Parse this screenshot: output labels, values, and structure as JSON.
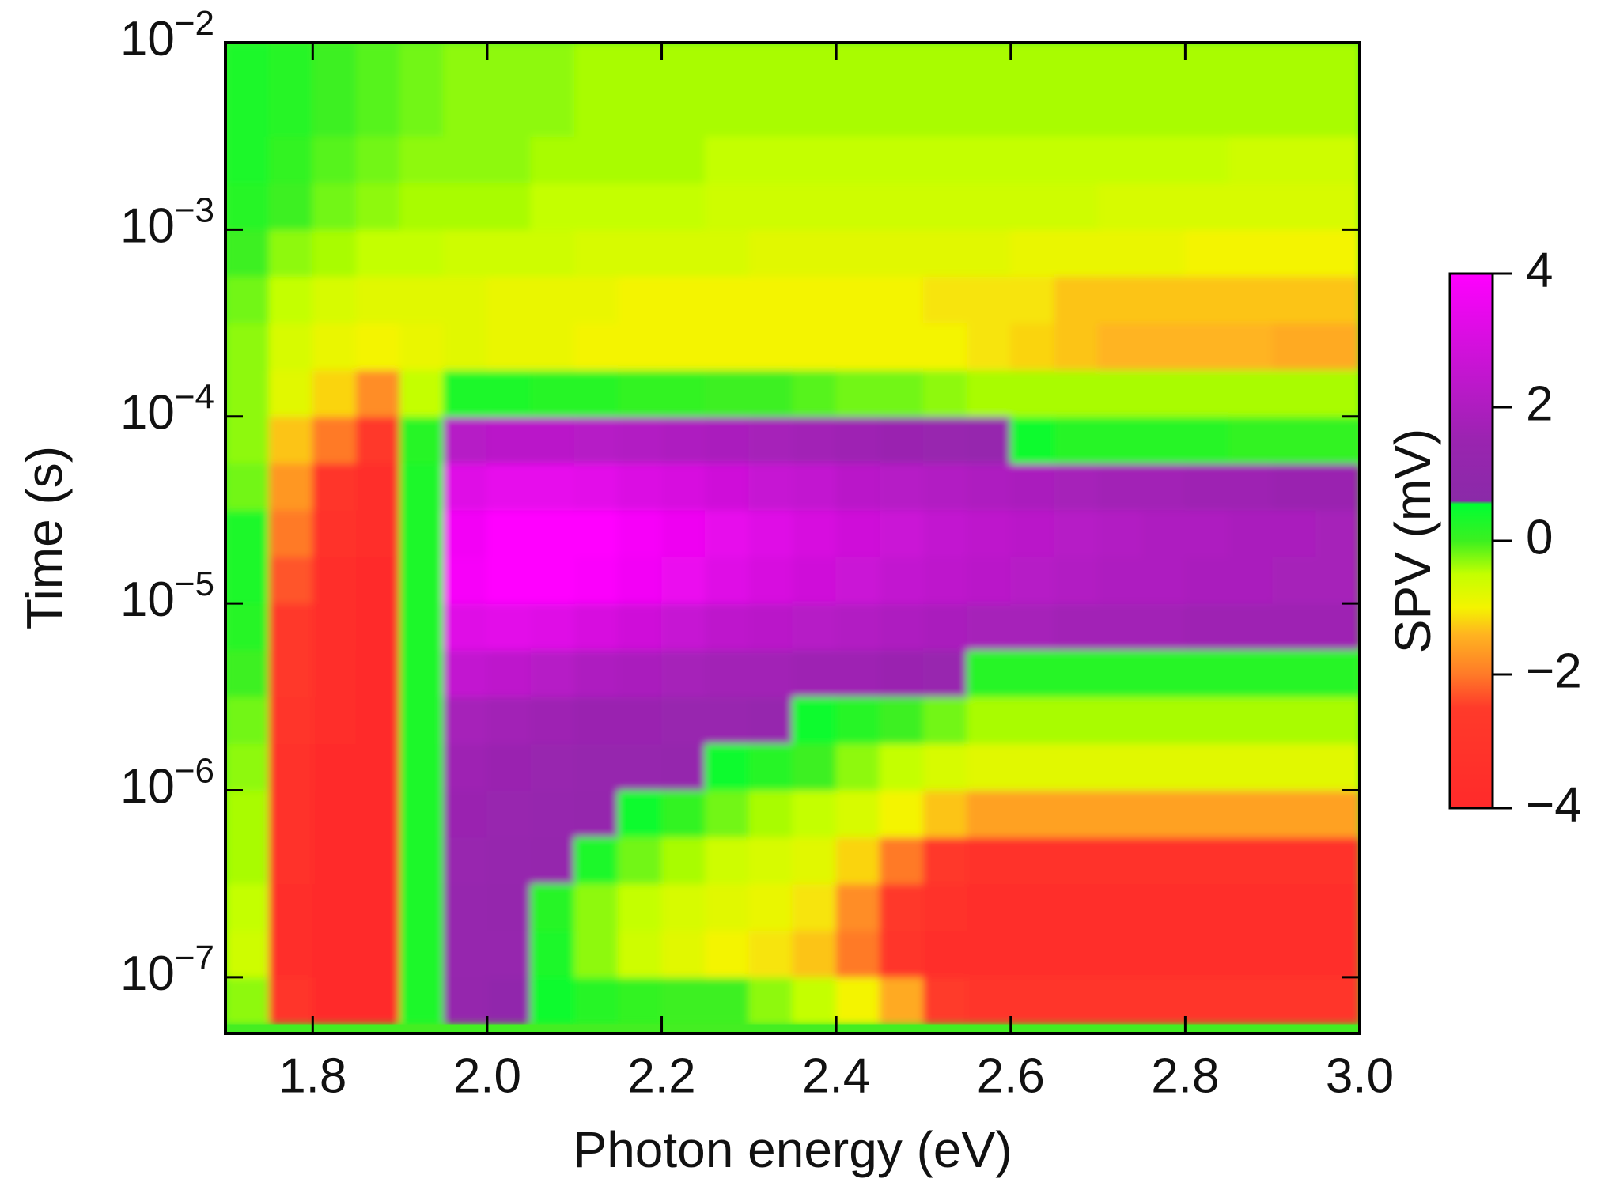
{
  "chart_data": {
    "type": "heatmap",
    "xlabel": "Photon energy (eV)",
    "ylabel": "Time (s)",
    "colorbar_label": "SPV (mV)",
    "x": [
      1.725,
      1.775,
      1.825,
      1.875,
      1.925,
      1.975,
      2.025,
      2.075,
      2.125,
      2.175,
      2.225,
      2.275,
      2.325,
      2.375,
      2.425,
      2.475,
      2.525,
      2.575,
      2.625,
      2.675,
      2.725,
      2.775,
      2.825,
      2.875,
      2.925,
      2.975
    ],
    "y": [
      7.5e-08,
      1.33e-07,
      2.37e-07,
      4.22e-07,
      7.5e-07,
      1.33e-06,
      2.37e-06,
      4.22e-06,
      7.5e-06,
      1.33e-05,
      2.37e-05,
      4.22e-05,
      7.5e-05,
      0.000133,
      0.000237,
      0.000422,
      0.00075,
      0.00133,
      0.00237,
      0.00422,
      0.0075
    ],
    "z": [
      [
        -0.3,
        -3,
        -3.8,
        -4,
        0.3,
        1.2,
        1,
        0.4,
        0.2,
        0.1,
        0,
        0,
        -0.3,
        -0.5,
        -1,
        -1.5,
        -2.5,
        -3,
        -3,
        -3,
        -3,
        -3,
        -3,
        -3,
        -3,
        -3
      ],
      [
        -0.6,
        -3.5,
        -3.9,
        -4,
        0.3,
        1.3,
        1.3,
        0.3,
        -0.3,
        -0.6,
        -0.8,
        -1,
        -1.1,
        -1.3,
        -2,
        -3,
        -3.5,
        -3.6,
        -3.6,
        -3.6,
        -3.6,
        -3.6,
        -3.6,
        -3.6,
        -3.6,
        -3.6
      ],
      [
        -0.5,
        -3.5,
        -3.9,
        -4,
        0.3,
        1.3,
        1.2,
        0.2,
        -0.3,
        -0.5,
        -0.7,
        -0.8,
        -0.9,
        -1.1,
        -1.8,
        -2.8,
        -3.4,
        -3.6,
        -3.6,
        -3.6,
        -3.6,
        -3.6,
        -3.6,
        -3.6,
        -3.6,
        -3.6
      ],
      [
        -0.4,
        -3.4,
        -3.9,
        -4,
        0.3,
        1.4,
        1.3,
        1.2,
        0.3,
        -0.2,
        -0.4,
        -0.6,
        -0.7,
        -0.8,
        -1.2,
        -2,
        -2.6,
        -3.2,
        -3.2,
        -3.2,
        -3.2,
        -3.2,
        -3.2,
        -3.2,
        -3.2,
        -3.2
      ],
      [
        -0.4,
        -3.3,
        -3.8,
        -4,
        0.3,
        1.5,
        1.4,
        1.3,
        1.2,
        0.4,
        0.1,
        -0.2,
        -0.4,
        -0.5,
        -0.7,
        -1,
        -1.3,
        -1.6,
        -1.6,
        -1.6,
        -1.6,
        -1.6,
        -1.6,
        -1.6,
        -1.6,
        -1.6
      ],
      [
        -0.3,
        -3.2,
        -3.8,
        -4,
        0.3,
        1.6,
        1.5,
        1.4,
        1.3,
        1.3,
        1.2,
        0.4,
        0.2,
        0,
        -0.3,
        -0.5,
        -0.7,
        -0.8,
        -0.8,
        -0.8,
        -0.8,
        -0.8,
        -0.8,
        -0.8,
        -0.8,
        -0.8
      ],
      [
        -0.2,
        -3,
        -3.7,
        -3.9,
        0.3,
        1.8,
        1.7,
        1.6,
        1.5,
        1.5,
        1.4,
        1.4,
        1.3,
        0.4,
        0.2,
        0,
        -0.2,
        -0.4,
        -0.4,
        -0.4,
        -0.4,
        -0.4,
        -0.4,
        -0.4,
        -0.4,
        -0.4
      ],
      [
        0,
        -2.8,
        -3.7,
        -3.9,
        0.3,
        2.5,
        2.4,
        2.2,
        2,
        1.9,
        1.8,
        1.7,
        1.7,
        1.6,
        1.6,
        1.5,
        1.4,
        0.2,
        0.2,
        0.2,
        0.2,
        0.2,
        0.2,
        0.2,
        0.2,
        0.2
      ],
      [
        0.2,
        -2.6,
        -3.6,
        -3.9,
        0.3,
        3.2,
        3.3,
        3.2,
        3,
        2.8,
        2.6,
        2.4,
        2.3,
        2.2,
        2.1,
        2,
        1.9,
        1.8,
        1.8,
        1.7,
        1.7,
        1.7,
        1.6,
        1.6,
        1.6,
        1.6
      ],
      [
        0.3,
        -2.3,
        -3.5,
        -3.8,
        0.3,
        3.8,
        4,
        4,
        3.9,
        3.7,
        3.5,
        3.2,
        3,
        2.8,
        2.7,
        2.5,
        2.4,
        2.3,
        2.2,
        2.1,
        2,
        2,
        1.9,
        1.9,
        1.8,
        1.8
      ],
      [
        0.3,
        -2,
        -3.3,
        -3.7,
        0.3,
        3.7,
        4,
        4,
        4,
        3.8,
        3.6,
        3.4,
        3.2,
        3,
        2.8,
        2.7,
        2.5,
        2.4,
        2.3,
        2.2,
        2.1,
        2,
        2,
        1.9,
        1.9,
        1.8
      ],
      [
        -0.2,
        -1.7,
        -3,
        -3.6,
        0.3,
        3.2,
        3.4,
        3.4,
        3.3,
        3.1,
        3,
        2.8,
        2.6,
        2.5,
        2.3,
        2.2,
        2.1,
        2,
        1.9,
        1.8,
        1.7,
        1.7,
        1.6,
        1.6,
        1.5,
        1.5
      ],
      [
        -0.3,
        -1.3,
        -2,
        -2.6,
        0.2,
        2.2,
        2.3,
        2.3,
        2.2,
        2.1,
        2,
        1.9,
        1.8,
        1.7,
        1.6,
        1.5,
        1.4,
        1.3,
        0.4,
        0.2,
        0.2,
        0.2,
        0.2,
        0.1,
        0.1,
        0.1
      ],
      [
        -0.3,
        -0.8,
        -1.2,
        -1.8,
        -0.5,
        0.3,
        0.3,
        0.2,
        0.2,
        0.1,
        0.1,
        0,
        0,
        -0.1,
        -0.2,
        -0.2,
        -0.3,
        -0.4,
        -0.4,
        -0.4,
        -0.4,
        -0.4,
        -0.4,
        -0.4,
        -0.4,
        -0.4
      ],
      [
        -0.3,
        -0.7,
        -0.9,
        -1,
        -0.9,
        -0.8,
        -0.9,
        -0.9,
        -1,
        -1,
        -1,
        -1,
        -1,
        -1,
        -1,
        -1,
        -1,
        -1.1,
        -1.2,
        -1.3,
        -1.4,
        -1.4,
        -1.4,
        -1.4,
        -1.5,
        -1.5
      ],
      [
        -0.2,
        -0.5,
        -0.7,
        -0.8,
        -0.8,
        -0.8,
        -0.9,
        -0.9,
        -0.9,
        -1,
        -1,
        -1,
        -1,
        -1,
        -1,
        -1,
        -1.1,
        -1.1,
        -1.1,
        -1.3,
        -1.3,
        -1.3,
        -1.3,
        -1.3,
        -1.3,
        -1.3
      ],
      [
        0,
        -0.3,
        -0.4,
        -0.5,
        -0.5,
        -0.6,
        -0.6,
        -0.6,
        -0.7,
        -0.7,
        -0.7,
        -0.7,
        -0.8,
        -0.8,
        -0.8,
        -0.8,
        -0.8,
        -0.8,
        -0.9,
        -0.9,
        -0.9,
        -0.9,
        -1,
        -1,
        -1,
        -1
      ],
      [
        0.2,
        0,
        -0.2,
        -0.3,
        -0.4,
        -0.4,
        -0.4,
        -0.5,
        -0.5,
        -0.5,
        -0.5,
        -0.6,
        -0.6,
        -0.6,
        -0.6,
        -0.6,
        -0.6,
        -0.6,
        -0.6,
        -0.6,
        -0.7,
        -0.7,
        -0.7,
        -0.7,
        -0.7,
        -0.7
      ],
      [
        0.3,
        0.1,
        -0.1,
        -0.2,
        -0.3,
        -0.3,
        -0.3,
        -0.4,
        -0.4,
        -0.4,
        -0.4,
        -0.5,
        -0.5,
        -0.5,
        -0.5,
        -0.5,
        -0.5,
        -0.5,
        -0.5,
        -0.5,
        -0.5,
        -0.5,
        -0.5,
        -0.6,
        -0.6,
        -0.6
      ],
      [
        0.3,
        0.2,
        0,
        -0.1,
        -0.2,
        -0.3,
        -0.3,
        -0.3,
        -0.4,
        -0.4,
        -0.4,
        -0.4,
        -0.4,
        -0.4,
        -0.4,
        -0.4,
        -0.4,
        -0.4,
        -0.4,
        -0.4,
        -0.4,
        -0.4,
        -0.4,
        -0.4,
        -0.4,
        -0.4
      ],
      [
        0.3,
        0.2,
        0,
        -0.1,
        -0.2,
        -0.3,
        -0.3,
        -0.3,
        -0.4,
        -0.4,
        -0.4,
        -0.4,
        -0.4,
        -0.4,
        -0.4,
        -0.4,
        -0.4,
        -0.4,
        -0.4,
        -0.4,
        -0.4,
        -0.4,
        -0.4,
        -0.4,
        -0.4,
        -0.4
      ]
    ],
    "xlim": [
      1.7,
      3.0
    ],
    "xticks": [
      1.8,
      {
        "value": 2,
        "label": "2.0"
      },
      2.2,
      2.4,
      2.6,
      2.8,
      {
        "value": 3,
        "label": "3.0"
      }
    ],
    "ylim": [
      5e-08,
      0.01
    ],
    "ylog": true,
    "yticks": [
      {
        "value": 1e-07,
        "label": "10−7"
      },
      {
        "value": 1e-06,
        "label": "10−6"
      },
      {
        "value": 1e-05,
        "label": "10−5"
      },
      {
        "value": 0.0001,
        "label": "10−4"
      },
      {
        "value": 0.001,
        "label": "10−3"
      },
      {
        "value": 0.01,
        "label": "10−2"
      }
    ],
    "zlim": [
      -4,
      4
    ],
    "zticks": [
      {
        "value": -4,
        "label": "−4"
      },
      {
        "value": -2,
        "label": "−2"
      },
      0,
      2,
      4
    ],
    "colorscale": [
      [
        -4,
        "#ff2a2a"
      ],
      [
        -2.5,
        "#ff3a2a"
      ],
      [
        -2,
        "#ff7a28"
      ],
      [
        -1.4,
        "#ffb420"
      ],
      [
        -1,
        "#f4f400"
      ],
      [
        -0.5,
        "#c4ff00"
      ],
      [
        0,
        "#3cf020"
      ],
      [
        0.55,
        "#00ff33"
      ],
      [
        0.6,
        "#8a2aa8"
      ],
      [
        1.5,
        "#9a24b0"
      ],
      [
        4,
        "#ff00ff"
      ]
    ]
  }
}
